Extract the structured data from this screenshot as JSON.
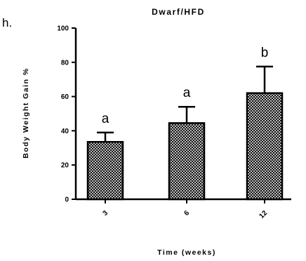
{
  "panel_label": "h.",
  "chart_data": {
    "type": "bar",
    "title": "Dwarf/HFD",
    "xlabel": "Time (weeks)",
    "ylabel": "Body Weight Gain %",
    "categories": [
      "3",
      "6",
      "12"
    ],
    "values": [
      33.5,
      44.5,
      62
    ],
    "errors": [
      5.5,
      9.5,
      15.5
    ],
    "annotations": [
      "a",
      "a",
      "b"
    ],
    "ylim": [
      0,
      100
    ],
    "yticks": [
      0,
      20,
      40,
      60,
      80,
      100
    ],
    "bar_fill": "crosshatch",
    "bar_color": "#000000",
    "grid": false,
    "legend": "none"
  }
}
